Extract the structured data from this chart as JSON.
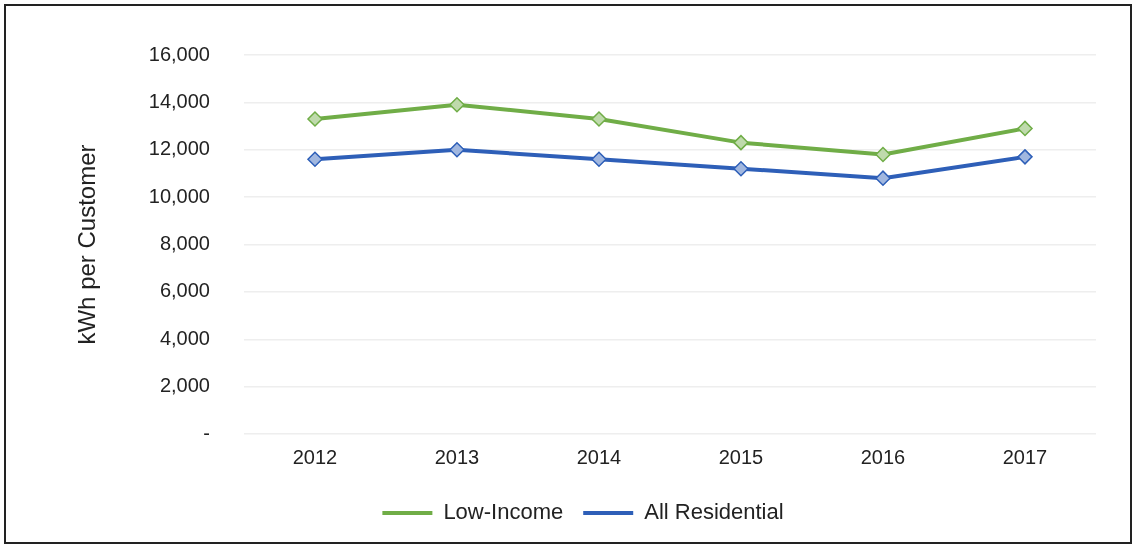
{
  "chart_data": {
    "type": "line",
    "ylabel": "kWh per Customer",
    "categories": [
      "2012",
      "2013",
      "2014",
      "2015",
      "2016",
      "2017"
    ],
    "series": [
      {
        "name": "Low-Income",
        "color": "#70ad47",
        "values": [
          13300,
          13900,
          13300,
          12300,
          11800,
          12900
        ]
      },
      {
        "name": "All Residential",
        "color": "#2e5fb8",
        "values": [
          11600,
          12000,
          11600,
          11200,
          10800,
          11700
        ]
      }
    ],
    "ylim": [
      0,
      16000
    ],
    "yticks": [
      {
        "value": 0,
        "label": "-"
      },
      {
        "value": 2000,
        "label": "2,000"
      },
      {
        "value": 4000,
        "label": "4,000"
      },
      {
        "value": 6000,
        "label": "6,000"
      },
      {
        "value": 8000,
        "label": "8,000"
      },
      {
        "value": 10000,
        "label": "10,000"
      },
      {
        "value": 12000,
        "label": "12,000"
      },
      {
        "value": 14000,
        "label": "14,000"
      },
      {
        "value": 16000,
        "label": "16,000"
      }
    ],
    "grid": "y",
    "legend": "bottom",
    "marker": "diamond",
    "line_style": "solid"
  }
}
